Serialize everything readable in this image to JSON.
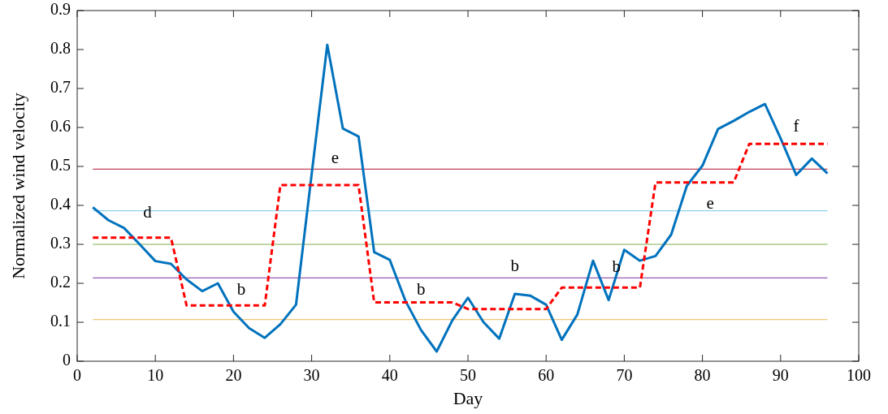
{
  "chart_data": {
    "type": "line",
    "xlabel": "Day",
    "ylabel": "Normalized wind velocity",
    "xlim": [
      0,
      100
    ],
    "xticks": [
      0,
      10,
      20,
      30,
      40,
      50,
      60,
      70,
      80,
      90,
      100
    ],
    "ylim": [
      0,
      0.9
    ],
    "yticks": [
      0,
      0.1,
      0.2,
      0.3,
      0.4,
      0.5,
      0.6,
      0.7,
      0.8,
      0.9
    ],
    "grid": false,
    "series": [
      {
        "color": "#0072bd",
        "line_style": "solid",
        "x": [
          2,
          4,
          6,
          8,
          10,
          12,
          14,
          16,
          18,
          20,
          22,
          24,
          26,
          28,
          30,
          32,
          34,
          36,
          38,
          40,
          42,
          44,
          46,
          48,
          50,
          52,
          54,
          56,
          58,
          60,
          62,
          64,
          66,
          68,
          70,
          72,
          74,
          76,
          78,
          80,
          82,
          84,
          86,
          88,
          90,
          92,
          94,
          96
        ],
        "values": [
          0.395,
          0.362,
          0.342,
          0.3,
          0.257,
          0.25,
          0.21,
          0.18,
          0.2,
          0.127,
          0.085,
          0.06,
          0.095,
          0.145,
          0.48,
          0.812,
          0.597,
          0.577,
          0.28,
          0.26,
          0.155,
          0.08,
          0.025,
          0.105,
          0.163,
          0.1,
          0.058,
          0.173,
          0.168,
          0.145,
          0.055,
          0.12,
          0.258,
          0.157,
          0.286,
          0.258,
          0.27,
          0.325,
          0.45,
          0.502,
          0.596,
          0.617,
          0.64,
          0.66,
          0.572,
          0.478,
          0.52,
          0.482
        ]
      },
      {
        "color": "#ff0000",
        "line_style": "dashed",
        "x": [
          2,
          12,
          14,
          24,
          26,
          36,
          38,
          48,
          50,
          60,
          62,
          72,
          74,
          84,
          86,
          96
        ],
        "values": [
          0.317,
          0.317,
          0.143,
          0.143,
          0.452,
          0.452,
          0.151,
          0.151,
          0.134,
          0.134,
          0.189,
          0.189,
          0.459,
          0.459,
          0.558,
          0.558
        ]
      }
    ],
    "ref_lines": [
      {
        "axis": "y",
        "value": 0.493,
        "color": "#c0405a"
      },
      {
        "axis": "y",
        "value": 0.386,
        "color": "#8fd3ee"
      },
      {
        "axis": "y",
        "value": 0.3,
        "color": "#a9c987"
      },
      {
        "axis": "y",
        "value": 0.214,
        "color": "#9a5ab0"
      },
      {
        "axis": "y",
        "value": 0.107,
        "color": "#f0c47a"
      }
    ],
    "annotations": [
      {
        "text": "d",
        "x": 9,
        "y": 0.317
      },
      {
        "text": "b",
        "x": 21,
        "y": 0.143
      },
      {
        "text": "e",
        "x": 33,
        "y": 0.452
      },
      {
        "text": "b",
        "x": 44,
        "y": 0.151
      },
      {
        "text": "b",
        "x": 56,
        "y": 0.134
      },
      {
        "text": "b",
        "x": 69,
        "y": 0.189
      },
      {
        "text": "e",
        "x": 81,
        "y": 0.459
      },
      {
        "text": "f",
        "x": 92,
        "y": 0.558
      }
    ]
  }
}
